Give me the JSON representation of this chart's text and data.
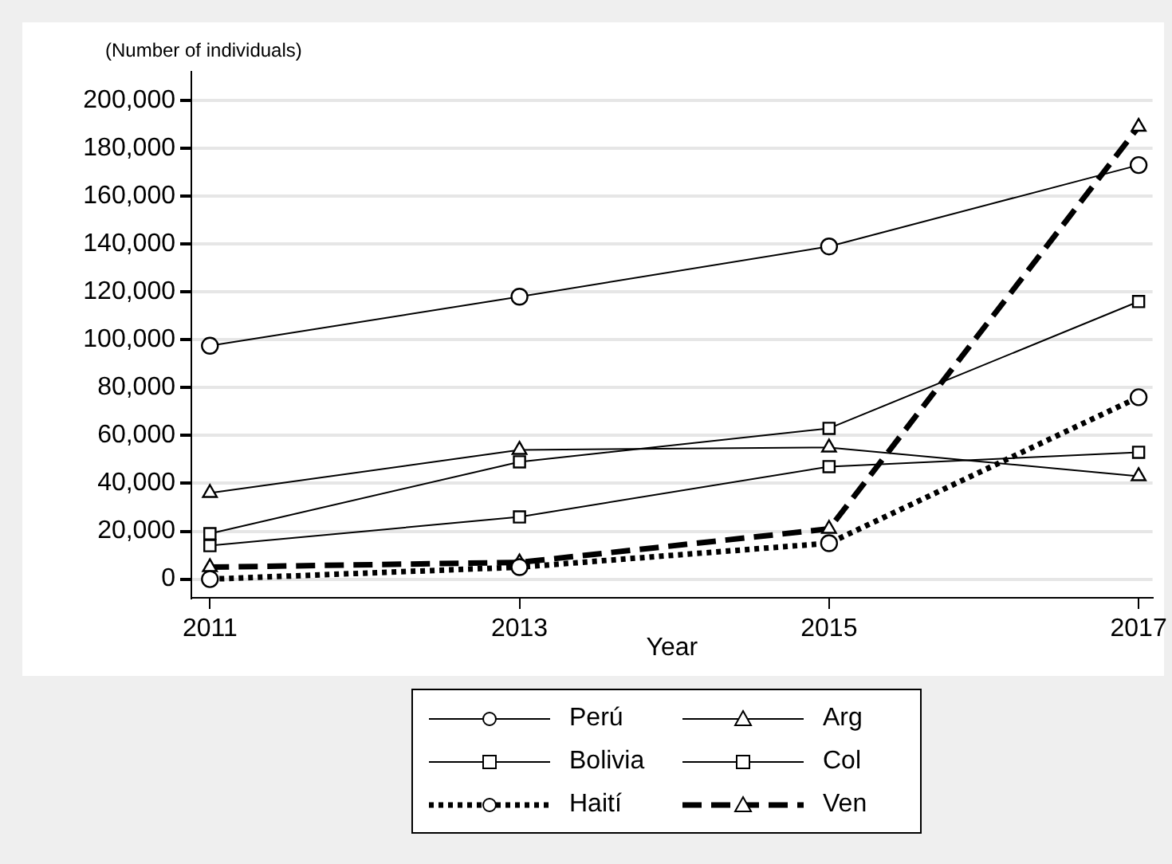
{
  "chart_data": {
    "type": "line",
    "xlabel": "Year",
    "ylabel": "(Number of individuals)",
    "x": [
      2011,
      2013,
      2015,
      2017
    ],
    "xlim": [
      2010.88,
      2017.09
    ],
    "xticks": [
      2011,
      2013,
      2015,
      2017
    ],
    "ylim": [
      -7800,
      212000
    ],
    "yticks": [
      0,
      {
        "value": 20000,
        "label": "20,000"
      },
      {
        "value": 40000,
        "label": "40,000"
      },
      {
        "value": 60000,
        "label": "60,000"
      },
      {
        "value": 80000,
        "label": "80,000"
      },
      {
        "value": 100000,
        "label": "100,000"
      },
      {
        "value": 120000,
        "label": "120,000"
      },
      {
        "value": 140000,
        "label": "140,000"
      },
      {
        "value": 160000,
        "label": "160,000"
      },
      {
        "value": 180000,
        "label": "180,000"
      },
      {
        "value": 200000,
        "label": "200,000"
      }
    ],
    "grid": "y",
    "legend": "bottom",
    "series": [
      {
        "name": "Perú",
        "color": "#000000",
        "marker": "circle",
        "line_style": "solid",
        "values": [
          97500,
          118000,
          139000,
          173000
        ]
      },
      {
        "name": "Arg",
        "color": "#000000",
        "marker": "triangle",
        "line_style": "solid",
        "values": [
          36000,
          54000,
          55000,
          43000
        ]
      },
      {
        "name": "Bolivia",
        "color": "#000000",
        "marker": "square",
        "line_style": "solid",
        "values": [
          14000,
          26000,
          47000,
          53000
        ]
      },
      {
        "name": "Col",
        "color": "#000000",
        "marker": "square",
        "line_style": "solid",
        "values": [
          19000,
          49000,
          63000,
          116000
        ]
      },
      {
        "name": "Haití",
        "color": "#000000",
        "marker": "circle",
        "line_style": "dotted",
        "values": [
          0,
          5000,
          15000,
          76000
        ]
      },
      {
        "name": "Ven",
        "color": "#000000",
        "marker": "triangle",
        "line_style": "dashed",
        "values": [
          5000,
          7000,
          21000,
          189000
        ]
      }
    ]
  }
}
